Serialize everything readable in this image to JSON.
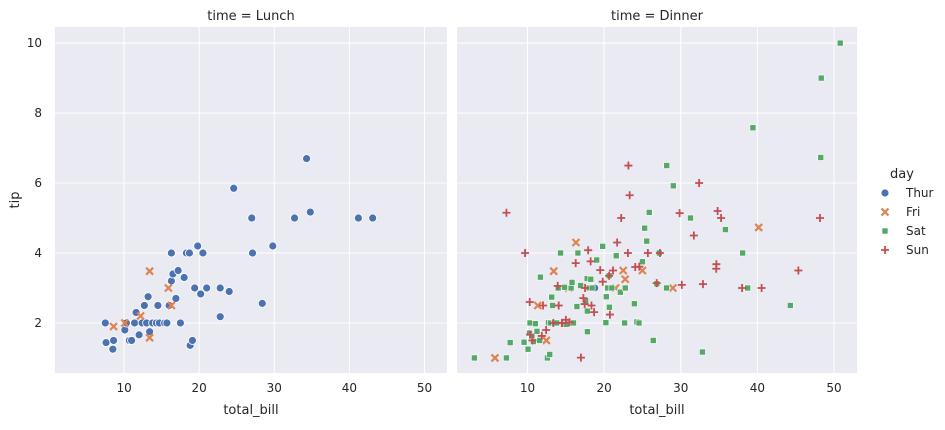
{
  "chart_data": {
    "type": "scatter",
    "xlabel": "total_bill",
    "ylabel": "tip",
    "xlim": [
      0.8,
      53
    ],
    "ylim": [
      0.57,
      10.46
    ],
    "xticks": [
      10,
      20,
      30,
      40,
      50
    ],
    "yticks": [
      2,
      4,
      6,
      8,
      10
    ],
    "grid": true,
    "legend": {
      "title": "day",
      "placement": "right",
      "entries": [
        {
          "name": "Thur",
          "color": "#4c72b0",
          "marker": "circle"
        },
        {
          "name": "Fri",
          "color": "#dd8452",
          "marker": "x"
        },
        {
          "name": "Sat",
          "color": "#55a868",
          "marker": "square"
        },
        {
          "name": "Sun",
          "color": "#c44e52",
          "marker": "plus"
        }
      ]
    },
    "panels": [
      {
        "title": "time = Lunch",
        "series": [
          {
            "name": "Thur",
            "points": [
              [
                7.5,
                2
              ],
              [
                7.6,
                1.44
              ],
              [
                8.5,
                1.25
              ],
              [
                8.6,
                1.5
              ],
              [
                10.1,
                1.8
              ],
              [
                10.3,
                2
              ],
              [
                10.7,
                1.5
              ],
              [
                11.0,
                1.5
              ],
              [
                11.4,
                2
              ],
              [
                11.6,
                2.3
              ],
              [
                12.0,
                1.66
              ],
              [
                12.4,
                2
              ],
              [
                12.7,
                2.5
              ],
              [
                13.0,
                2
              ],
              [
                13.2,
                2.75
              ],
              [
                13.4,
                1.75
              ],
              [
                13.8,
                2
              ],
              [
                14.3,
                2
              ],
              [
                14.5,
                2.5
              ],
              [
                14.7,
                2
              ],
              [
                15.4,
                2
              ],
              [
                15.7,
                2
              ],
              [
                16.0,
                2.5
              ],
              [
                16.3,
                4
              ],
              [
                16.3,
                3.2
              ],
              [
                16.5,
                3.4
              ],
              [
                16.9,
                2.7
              ],
              [
                17.2,
                3.5
              ],
              [
                17.5,
                2
              ],
              [
                18.0,
                3.3
              ],
              [
                18.3,
                4
              ],
              [
                18.7,
                4
              ],
              [
                18.8,
                1.36
              ],
              [
                19.1,
                1.5
              ],
              [
                19.4,
                3
              ],
              [
                19.8,
                4.2
              ],
              [
                20.2,
                2.83
              ],
              [
                20.5,
                4
              ],
              [
                21.0,
                3
              ],
              [
                22.8,
                2.18
              ],
              [
                22.8,
                3
              ],
              [
                24.0,
                2.9
              ],
              [
                24.6,
                5.85
              ],
              [
                27.0,
                5
              ],
              [
                27.1,
                4
              ],
              [
                28.4,
                2.56
              ],
              [
                29.8,
                4.2
              ],
              [
                32.7,
                5
              ],
              [
                34.3,
                6.7
              ],
              [
                34.8,
                5.17
              ],
              [
                41.2,
                5
              ],
              [
                43.1,
                5
              ]
            ]
          },
          {
            "name": "Fri",
            "points": [
              [
                8.6,
                1.9
              ],
              [
                10.1,
                2
              ],
              [
                12.2,
                2.2
              ],
              [
                13.4,
                3.48
              ],
              [
                13.4,
                1.58
              ],
              [
                15.9,
                3
              ],
              [
                16.3,
                2.5
              ]
            ]
          }
        ]
      },
      {
        "title": "time = Dinner",
        "series": [
          {
            "name": "Thur",
            "points": [
              [
                18.78,
                3
              ]
            ]
          },
          {
            "name": "Fri",
            "points": [
              [
                5.75,
                1
              ],
              [
                11.35,
                2.5
              ],
              [
                12.46,
                1.5
              ],
              [
                13.42,
                3.48
              ],
              [
                15.38,
                3
              ],
              [
                16.32,
                4.3
              ],
              [
                22.49,
                3.5
              ],
              [
                25.0,
                3.5
              ],
              [
                28.97,
                3
              ],
              [
                40.17,
                4.73
              ],
              [
                22.75,
                3.25
              ],
              [
                21.5,
                3
              ]
            ]
          },
          {
            "name": "Sat",
            "points": [
              [
                3.07,
                1
              ],
              [
                7.25,
                1
              ],
              [
                7.74,
                1.44
              ],
              [
                9.55,
                1.45
              ],
              [
                10.07,
                1.25
              ],
              [
                10.27,
                1.71
              ],
              [
                10.33,
                2
              ],
              [
                10.59,
                1.61
              ],
              [
                10.77,
                1.47
              ],
              [
                11.02,
                1.98
              ],
              [
                11.24,
                1.76
              ],
              [
                11.59,
                1.5
              ],
              [
                11.69,
                3.31
              ],
              [
                12.6,
                1
              ],
              [
                12.74,
                2.01
              ],
              [
                12.9,
                1.1
              ],
              [
                13.0,
                2
              ],
              [
                13.16,
                2.74
              ],
              [
                13.27,
                2.5
              ],
              [
                13.51,
                2
              ],
              [
                13.81,
                2
              ],
              [
                14.0,
                3
              ],
              [
                14.31,
                4
              ],
              [
                14.83,
                3.02
              ],
              [
                15.04,
                1.96
              ],
              [
                15.69,
                3
              ],
              [
                15.81,
                3.16
              ],
              [
                16.0,
                2
              ],
              [
                16.45,
                2.47
              ],
              [
                16.58,
                4
              ],
              [
                16.93,
                3.07
              ],
              [
                17.59,
                2.64
              ],
              [
                17.78,
                3.27
              ],
              [
                17.81,
                2.34
              ],
              [
                17.82,
                1.75
              ],
              [
                18.04,
                3
              ],
              [
                18.26,
                3.25
              ],
              [
                18.43,
                3
              ],
              [
                19.03,
                3.8
              ],
              [
                19.81,
                4.19
              ],
              [
                20.23,
                2.01
              ],
              [
                20.29,
                2.75
              ],
              [
                20.45,
                3
              ],
              [
                20.65,
                3.35
              ],
              [
                20.69,
                2.45
              ],
              [
                21.01,
                3
              ],
              [
                21.58,
                3.92
              ],
              [
                22.12,
                2.88
              ],
              [
                22.67,
                2
              ],
              [
                22.76,
                3
              ],
              [
                23.95,
                2.55
              ],
              [
                24.27,
                2.03
              ],
              [
                24.55,
                2
              ],
              [
                25.0,
                3.75
              ],
              [
                25.29,
                4.71
              ],
              [
                25.56,
                4.34
              ],
              [
                25.89,
                5.16
              ],
              [
                26.41,
                1.5
              ],
              [
                26.88,
                3.12
              ],
              [
                27.2,
                4
              ],
              [
                28.15,
                3
              ],
              [
                28.17,
                6.5
              ],
              [
                29.03,
                5.92
              ],
              [
                31.27,
                5
              ],
              [
                32.83,
                1.17
              ],
              [
                35.83,
                4.67
              ],
              [
                38.07,
                4
              ],
              [
                38.73,
                3
              ],
              [
                39.42,
                7.58
              ],
              [
                44.3,
                2.5
              ],
              [
                48.27,
                6.73
              ],
              [
                48.33,
                9
              ],
              [
                50.81,
                10
              ]
            ]
          },
          {
            "name": "Sun",
            "points": [
              [
                7.25,
                5.15
              ],
              [
                9.68,
                4
              ],
              [
                10.29,
                2.6
              ],
              [
                10.33,
                1.67
              ],
              [
                10.65,
                1.5
              ],
              [
                11.87,
                1.63
              ],
              [
                12.03,
                2.5
              ],
              [
                12.43,
                1.8
              ],
              [
                13.37,
                2
              ],
              [
                13.94,
                3.06
              ],
              [
                14.07,
                2.5
              ],
              [
                14.48,
                2
              ],
              [
                14.52,
                2
              ],
              [
                15.01,
                2.09
              ],
              [
                15.48,
                2.02
              ],
              [
                16.29,
                3.71
              ],
              [
                16.97,
                1.01
              ],
              [
                17.29,
                2.71
              ],
              [
                17.46,
                2.54
              ],
              [
                17.51,
                3
              ],
              [
                17.92,
                4.08
              ],
              [
                18.24,
                3.76
              ],
              [
                18.35,
                2.5
              ],
              [
                18.69,
                2.31
              ],
              [
                19.49,
                3.51
              ],
              [
                19.82,
                3.18
              ],
              [
                20.65,
                3.35
              ],
              [
                20.76,
                2.24
              ],
              [
                21.7,
                4.3
              ],
              [
                21.16,
                3.5
              ],
              [
                22.23,
                5
              ],
              [
                23.1,
                4
              ],
              [
                23.17,
                6.5
              ],
              [
                23.33,
                5.65
              ],
              [
                24.06,
                3.6
              ],
              [
                24.59,
                3.61
              ],
              [
                25.71,
                4
              ],
              [
                26.86,
                3.14
              ],
              [
                27.28,
                4
              ],
              [
                29.85,
                5.14
              ],
              [
                30.14,
                3.09
              ],
              [
                31.71,
                4.5
              ],
              [
                32.4,
                6
              ],
              [
                32.9,
                3.11
              ],
              [
                34.63,
                3.55
              ],
              [
                34.65,
                3.68
              ],
              [
                34.81,
                5.2
              ],
              [
                35.26,
                5
              ],
              [
                38.01,
                3
              ],
              [
                40.55,
                3
              ],
              [
                45.35,
                3.5
              ],
              [
                48.17,
                5
              ]
            ]
          }
        ]
      }
    ]
  }
}
